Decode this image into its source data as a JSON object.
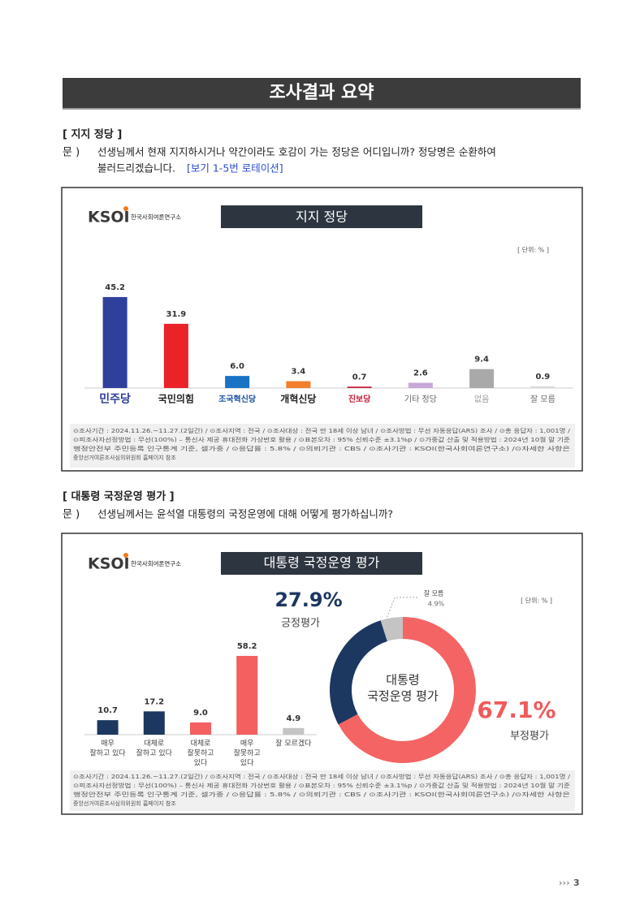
{
  "title": "조사결과 요약",
  "sections": [
    {
      "heading": "[ 지지 정당 ]",
      "q_label": "문 )",
      "question": [
        "선생님께서 현재 지지하시거나 약간이라도 호감이 가는 정당은 어디입니까? 정당명은 순환하여",
        "불러드리겠습니다."
      ],
      "note": "[보기 1-5번 로테이션]"
    },
    {
      "heading": "[ 대통령 국정운영 평가 ]",
      "q_label": "문 )",
      "question": [
        "선생님께서는 윤석열 대통령의 국정운영에 대해 어떻게 평가하십니까?"
      ]
    }
  ],
  "boxes": [
    {
      "logo_mark": "KSOI",
      "logo_name": "한국사회여론연구소",
      "unit": "[ 단위: % ]",
      "footnote": [
        "⊙조사기간 : 2024.11.26.~11.27.(2일간)  / ⊙조사지역 : 전국 / ⊙조사대상 : 전국 만 18세 이상 남녀 / ⊙조사방법 : 무선 자동응답(ARS) 조사 / ⊙총 응답자 : 1,001명 /",
        "⊙피조사자선정방법 : 무선(100%) – 통신사 제공 휴대전화 가상번호 활용 / ⊙표본오차 : 95% 신뢰수준 ±3.1%p / ⊙가중값 산출 및 적용방법 : 2024년 10월 말 기준",
        "행정안전부 주민등록 인구통계 기준, 셀가중 / ⊙응답률 : 5.8% / ⊙의뢰기관 : CBS / ⊙조사기관 : KSOI(한국사회여론연구소) /⊙자세한 사항은",
        "중앙선거여론조사심의위원회 홈페이지 참조"
      ]
    },
    {
      "logo_mark": "KSOI",
      "logo_name": "한국사회여론연구소",
      "unit": "[ 단위: % ]",
      "footnote": [
        "⊙조사기간 : 2024.11.26.~11.27.(2일간)  / ⊙조사지역 : 전국 / ⊙조사대상 : 전국 만 18세 이상 남녀 / ⊙조사방법 : 무선 자동응답(ARS) 조사 / ⊙총 응답자 : 1,001명 /",
        "⊙피조사자선정방법 : 무선(100%) – 통신사 제공 휴대전화 가상번호 활용 / ⊙표본오차 : 95% 신뢰수준 ±3.1%p / ⊙가중값 산출 및 적용방법 : 2024년 10월 말 기준",
        "행정안전부 주민등록 인구통계 기준, 셀가중 / ⊙응답률 : 5.8% / ⊙의뢰기관 : CBS / ⊙조사기관 : KSOI(한국사회여론연구소) /⊙자세한 사항은",
        "중앙선거여론조사심의위원회 홈페이지 참조"
      ]
    }
  ],
  "chart_data": [
    {
      "type": "bar",
      "title": "지지 정당",
      "categories": [
        [
          "민주당"
        ],
        [
          "국민의힘"
        ],
        [
          "조국혁신당"
        ],
        [
          "개혁신당"
        ],
        [
          "진보당"
        ],
        [
          "기타 정당"
        ],
        [
          "없음"
        ],
        [
          "잘 모름"
        ]
      ],
      "values": [
        45.2,
        31.9,
        6.0,
        3.4,
        0.7,
        2.6,
        9.4,
        0.9
      ],
      "value_labels": [
        "45.2",
        "31.9",
        "6.0",
        "3.4",
        "0.7",
        "2.6",
        "9.4",
        "0.9"
      ],
      "colors": [
        "#2f3f9c",
        "#ea2329",
        "#1a72c4",
        "#f17f2b",
        "#c4213b",
        "#c7a8d8",
        "#a9a9a9",
        "#dcdcdc"
      ],
      "ylim": [
        0,
        50
      ]
    },
    {
      "type": "bar",
      "title": "대통령 국정운영 평가",
      "categories": [
        [
          "매우",
          "잘하고 있다"
        ],
        [
          "대체로",
          "잘하고 있다"
        ],
        [
          "대체로",
          "잘못하고",
          "있다"
        ],
        [
          "매우",
          "잘못하고",
          "있다"
        ],
        [
          "잘 모르겠다"
        ]
      ],
      "values": [
        10.7,
        17.2,
        9.0,
        58.2,
        4.9
      ],
      "value_labels": [
        "10.7",
        "17.2",
        "9.0",
        "58.2",
        "4.9"
      ],
      "colors": [
        "#1c3760",
        "#1c3760",
        "#f45f5f",
        "#f45f5f",
        "#c4c4c4"
      ],
      "ylim": [
        0,
        70
      ]
    },
    {
      "type": "donut",
      "center_label": [
        "대통령",
        "국정운영 평가"
      ],
      "series": [
        {
          "name": "부정평가",
          "color": "#f46464",
          "value": 67.1,
          "value_label": "67.1%"
        },
        {
          "name": "긍정평가",
          "color": "#1c3760",
          "value": 27.9,
          "value_label": "27.9%"
        },
        {
          "name": "잘 모름",
          "color": "#c4c4c4",
          "value": 4.9,
          "value_label": "4.9%"
        }
      ]
    }
  ],
  "page_number": "3"
}
